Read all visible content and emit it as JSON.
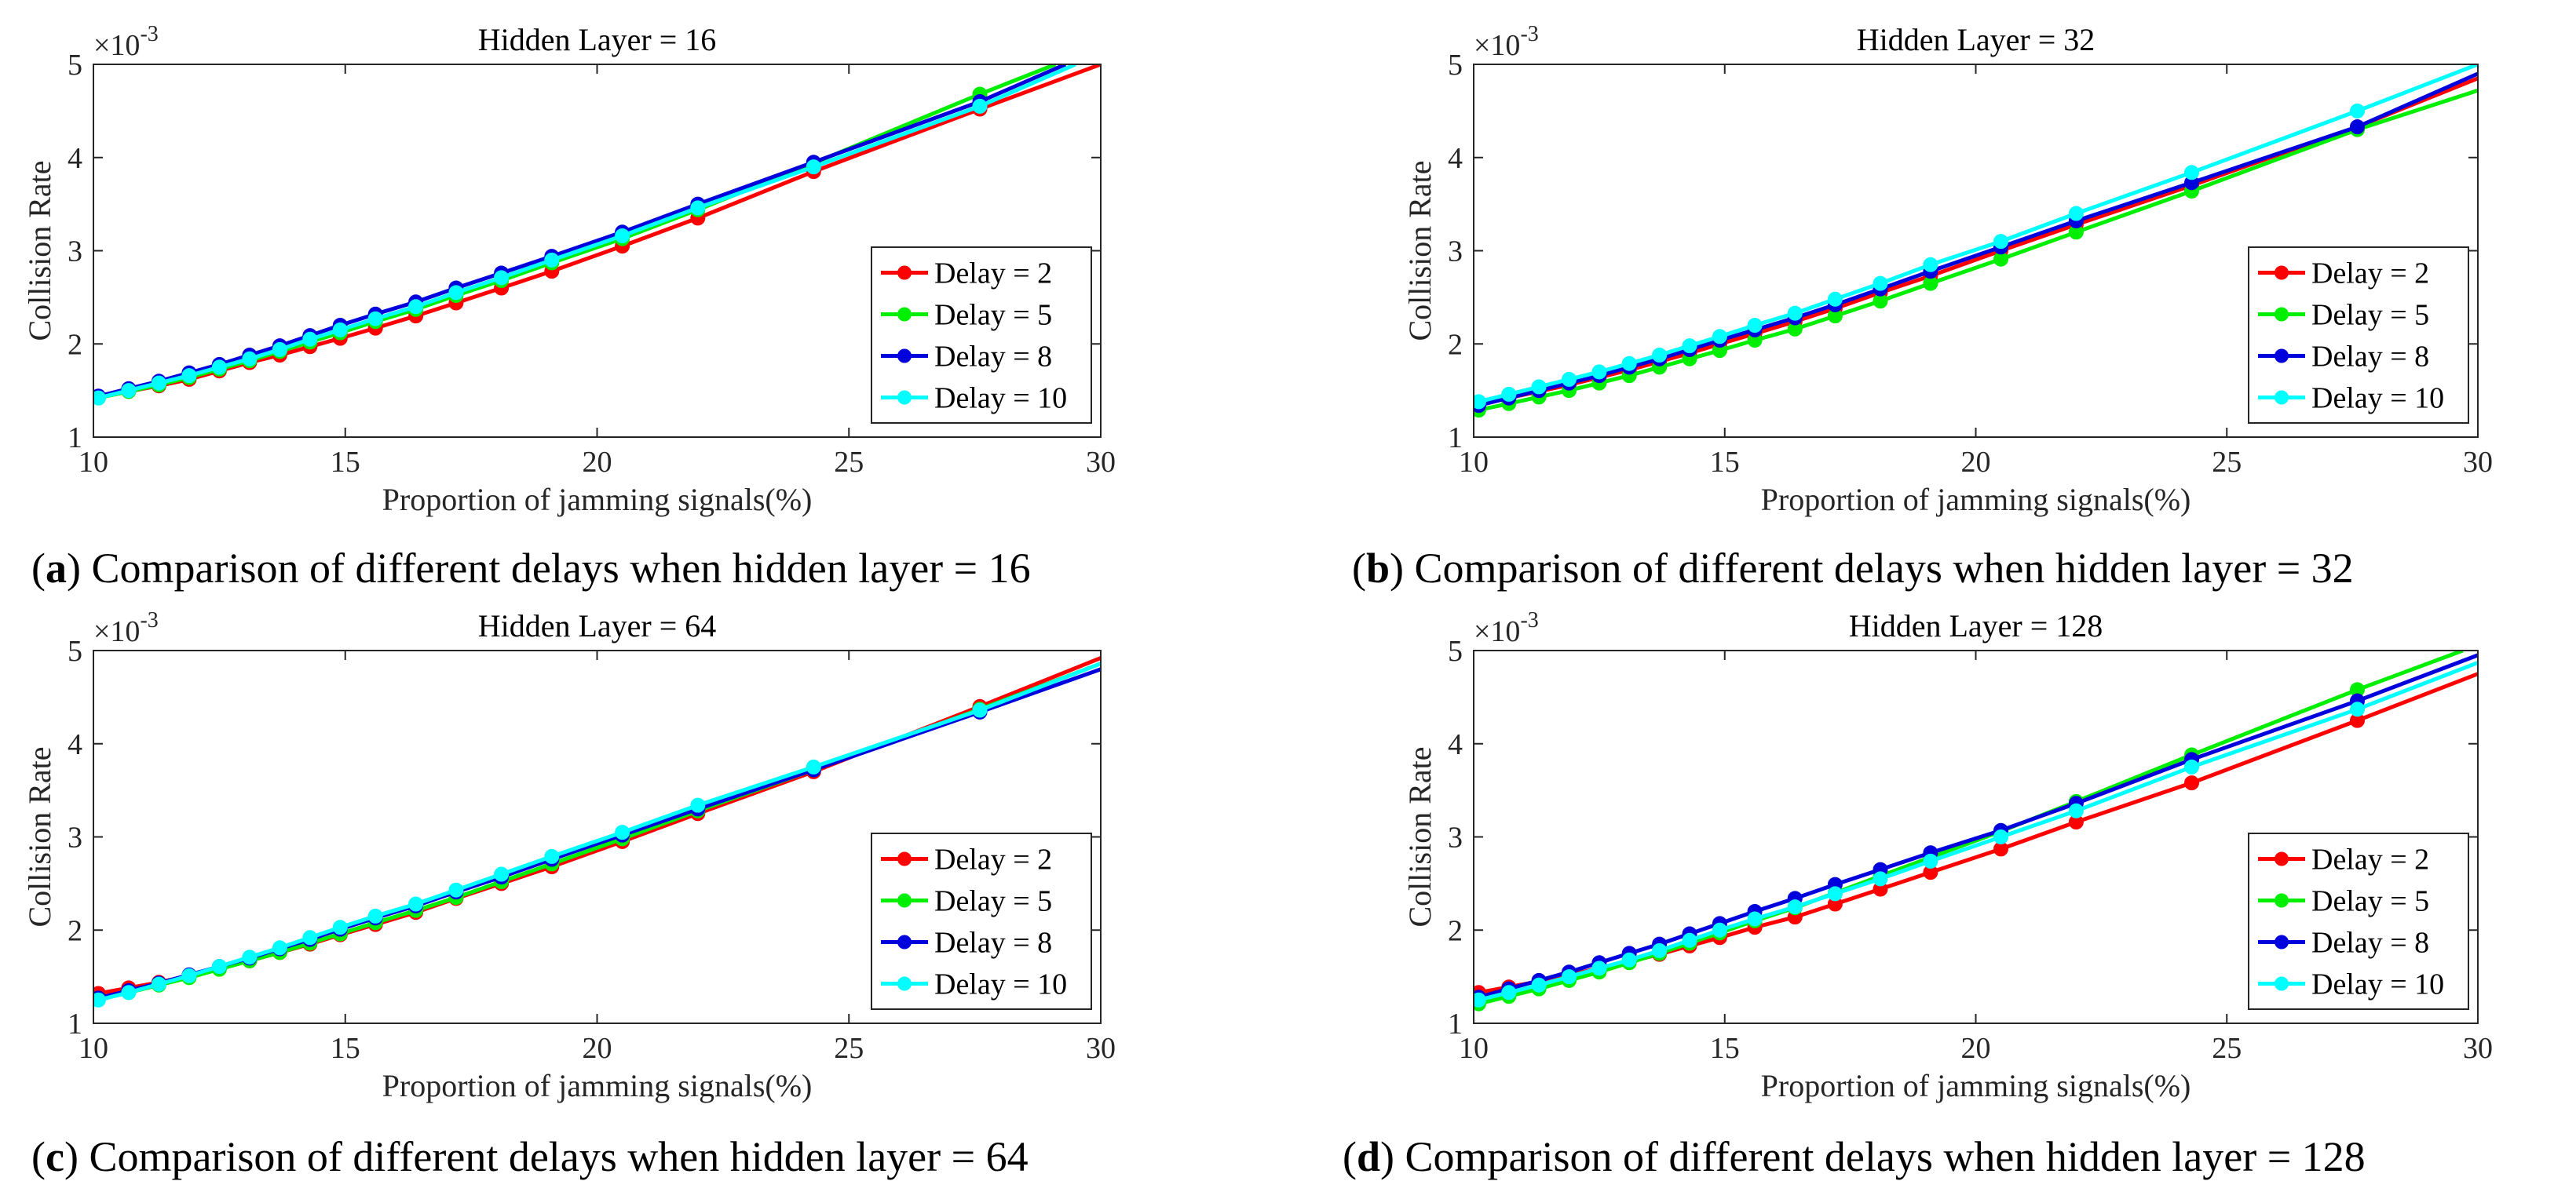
{
  "panels": [
    {
      "label": "a",
      "caption": "Comparison of different delays when hidden layer = 16",
      "chart_data": {
        "type": "line",
        "title": "Hidden Layer =  16",
        "xlabel": "Proportion of jamming signals(%)",
        "ylabel": "Collision Rate",
        "y_multiplier_text": "×10",
        "y_exponent_text": "-3",
        "xlim": [
          10,
          30
        ],
        "ylim": [
          1,
          5
        ],
        "xticks": [
          "10",
          "15",
          "20",
          "25",
          "30"
        ],
        "yticks": [
          "1",
          "2",
          "3",
          "4",
          "5"
        ],
        "legend_position": "lower-right",
        "series": [
          {
            "name": "Delay =  2",
            "color": "#ff0000",
            "x": [
              10.1,
              10.7,
              11.3,
              11.9,
              12.5,
              13.1,
              13.7,
              14.3,
              14.9,
              15.6,
              16.4,
              17.2,
              18.1,
              19.1,
              20.5,
              22.0,
              24.3,
              27.6,
              30.0
            ],
            "y": [
              1.43,
              1.49,
              1.55,
              1.62,
              1.71,
              1.8,
              1.88,
              1.97,
              2.06,
              2.17,
              2.3,
              2.44,
              2.6,
              2.78,
              3.05,
              3.35,
              3.85,
              4.52,
              5.0
            ]
          },
          {
            "name": "Delay =  5",
            "color": "#00ee00",
            "x": [
              10.1,
              10.7,
              11.3,
              11.9,
              12.5,
              13.1,
              13.7,
              14.3,
              14.9,
              15.6,
              16.4,
              17.2,
              18.1,
              19.1,
              20.5,
              22.0,
              24.3,
              27.6,
              29.1
            ],
            "y": [
              1.42,
              1.49,
              1.56,
              1.64,
              1.73,
              1.82,
              1.92,
              2.02,
              2.12,
              2.24,
              2.37,
              2.52,
              2.68,
              2.87,
              3.13,
              3.44,
              3.94,
              4.68,
              5.0
            ]
          },
          {
            "name": "Delay =  8",
            "color": "#0000dd",
            "x": [
              10.1,
              10.7,
              11.3,
              11.9,
              12.5,
              13.1,
              13.7,
              14.3,
              14.9,
              15.6,
              16.4,
              17.2,
              18.1,
              19.1,
              20.5,
              22.0,
              24.3,
              27.6,
              29.3
            ],
            "y": [
              1.44,
              1.52,
              1.6,
              1.69,
              1.78,
              1.88,
              1.98,
              2.09,
              2.2,
              2.32,
              2.45,
              2.6,
              2.76,
              2.94,
              3.2,
              3.5,
              3.95,
              4.6,
              5.0
            ]
          },
          {
            "name": "Delay = 10",
            "color": "#00ffff",
            "x": [
              10.1,
              10.7,
              11.3,
              11.9,
              12.5,
              13.1,
              13.7,
              14.3,
              14.9,
              15.6,
              16.4,
              17.2,
              18.1,
              19.1,
              20.5,
              22.0,
              24.3,
              27.6,
              29.5
            ],
            "y": [
              1.42,
              1.5,
              1.58,
              1.66,
              1.75,
              1.84,
              1.94,
              2.05,
              2.15,
              2.27,
              2.4,
              2.55,
              2.71,
              2.9,
              3.16,
              3.46,
              3.9,
              4.55,
              5.0
            ]
          }
        ]
      }
    },
    {
      "label": "b",
      "caption": "Comparison of different delays when hidden layer = 32",
      "chart_data": {
        "type": "line",
        "title": "Hidden Layer =  32",
        "xlabel": "Proportion of jamming signals(%)",
        "ylabel": "Collision Rate",
        "y_multiplier_text": "×10",
        "y_exponent_text": "-3",
        "xlim": [
          10,
          30
        ],
        "ylim": [
          1,
          5
        ],
        "xticks": [
          "10",
          "15",
          "20",
          "25",
          "30"
        ],
        "yticks": [
          "1",
          "2",
          "3",
          "4",
          "5"
        ],
        "legend_position": "lower-right",
        "series": [
          {
            "name": "Delay =  2",
            "color": "#ff0000",
            "x": [
              10.1,
              10.7,
              11.3,
              11.9,
              12.5,
              13.1,
              13.7,
              14.3,
              14.9,
              15.6,
              16.4,
              17.2,
              18.1,
              19.1,
              20.5,
              22.0,
              24.3,
              27.6,
              30.0
            ],
            "y": [
              1.35,
              1.42,
              1.49,
              1.56,
              1.64,
              1.72,
              1.81,
              1.9,
              2.0,
              2.11,
              2.24,
              2.38,
              2.55,
              2.73,
              3.0,
              3.28,
              3.7,
              4.33,
              4.85
            ]
          },
          {
            "name": "Delay =  5",
            "color": "#00ee00",
            "x": [
              10.1,
              10.7,
              11.3,
              11.9,
              12.5,
              13.1,
              13.7,
              14.3,
              14.9,
              15.6,
              16.4,
              17.2,
              18.1,
              19.1,
              20.5,
              22.0,
              24.3,
              27.6,
              30.0
            ],
            "y": [
              1.29,
              1.36,
              1.43,
              1.5,
              1.58,
              1.66,
              1.75,
              1.84,
              1.93,
              2.04,
              2.16,
              2.3,
              2.46,
              2.65,
              2.91,
              3.2,
              3.64,
              4.3,
              4.72
            ]
          },
          {
            "name": "Delay =  8",
            "color": "#0000dd",
            "x": [
              10.1,
              10.7,
              11.3,
              11.9,
              12.5,
              13.1,
              13.7,
              14.3,
              14.9,
              15.6,
              16.4,
              17.2,
              18.1,
              19.1,
              20.5,
              22.0,
              24.3,
              27.6,
              30.0
            ],
            "y": [
              1.34,
              1.42,
              1.5,
              1.58,
              1.66,
              1.75,
              1.84,
              1.94,
              2.04,
              2.15,
              2.28,
              2.42,
              2.59,
              2.78,
              3.04,
              3.32,
              3.73,
              4.33,
              4.9
            ]
          },
          {
            "name": "Delay = 10",
            "color": "#00ffff",
            "x": [
              10.1,
              10.7,
              11.3,
              11.9,
              12.5,
              13.1,
              13.7,
              14.3,
              14.9,
              15.6,
              16.4,
              17.2,
              18.1,
              19.1,
              20.5,
              22.0,
              24.3,
              27.6,
              30.0
            ],
            "y": [
              1.38,
              1.46,
              1.54,
              1.62,
              1.7,
              1.79,
              1.88,
              1.98,
              2.08,
              2.2,
              2.33,
              2.48,
              2.65,
              2.85,
              3.1,
              3.4,
              3.84,
              4.5,
              5.0
            ]
          }
        ]
      }
    },
    {
      "label": "c",
      "caption": "Comparison of different delays when hidden layer = 64",
      "chart_data": {
        "type": "line",
        "title": "Hidden Layer =  64",
        "xlabel": "Proportion of jamming signals(%)",
        "ylabel": "Collision Rate",
        "y_multiplier_text": "×10",
        "y_exponent_text": "-3",
        "xlim": [
          10,
          30
        ],
        "ylim": [
          1,
          5
        ],
        "xticks": [
          "10",
          "15",
          "20",
          "25",
          "30"
        ],
        "yticks": [
          "1",
          "2",
          "3",
          "4",
          "5"
        ],
        "legend_position": "lower-right",
        "series": [
          {
            "name": "Delay =  2",
            "color": "#ff0000",
            "x": [
              10.1,
              10.7,
              11.3,
              11.9,
              12.5,
              13.1,
              13.7,
              14.3,
              14.9,
              15.6,
              16.4,
              17.2,
              18.1,
              19.1,
              20.5,
              22.0,
              24.3,
              27.6,
              30.0
            ],
            "y": [
              1.32,
              1.38,
              1.44,
              1.51,
              1.59,
              1.67,
              1.76,
              1.85,
              1.95,
              2.06,
              2.19,
              2.34,
              2.5,
              2.68,
              2.95,
              3.25,
              3.7,
              4.4,
              4.92
            ]
          },
          {
            "name": "Delay =  5",
            "color": "#00ee00",
            "x": [
              10.1,
              10.7,
              11.3,
              11.9,
              12.5,
              13.1,
              13.7,
              14.3,
              14.9,
              15.6,
              16.4,
              17.2,
              18.1,
              19.1,
              20.5,
              22.0,
              24.3,
              27.6,
              30.0
            ],
            "y": [
              1.26,
              1.33,
              1.41,
              1.49,
              1.58,
              1.67,
              1.76,
              1.86,
              1.96,
              2.08,
              2.21,
              2.35,
              2.52,
              2.71,
              2.98,
              3.28,
              3.72,
              4.37,
              4.86
            ]
          },
          {
            "name": "Delay =  8",
            "color": "#0000dd",
            "x": [
              10.1,
              10.7,
              11.3,
              11.9,
              12.5,
              13.1,
              13.7,
              14.3,
              14.9,
              15.6,
              16.4,
              17.2,
              18.1,
              19.1,
              20.5,
              22.0,
              24.3,
              27.6,
              30.0
            ],
            "y": [
              1.27,
              1.35,
              1.43,
              1.52,
              1.61,
              1.7,
              1.8,
              1.9,
              2.01,
              2.13,
              2.26,
              2.41,
              2.57,
              2.76,
              3.02,
              3.3,
              3.72,
              4.34,
              4.8
            ]
          },
          {
            "name": "Delay = 10",
            "color": "#00ffff",
            "x": [
              10.1,
              10.7,
              11.3,
              11.9,
              12.5,
              13.1,
              13.7,
              14.3,
              14.9,
              15.6,
              16.4,
              17.2,
              18.1,
              19.1,
              20.5,
              22.0,
              24.3,
              27.6,
              30.0
            ],
            "y": [
              1.25,
              1.33,
              1.42,
              1.51,
              1.61,
              1.71,
              1.81,
              1.92,
              2.03,
              2.15,
              2.28,
              2.43,
              2.6,
              2.79,
              3.05,
              3.34,
              3.75,
              4.36,
              4.86
            ]
          }
        ]
      }
    },
    {
      "label": "d",
      "caption": "Comparison of different delays when hidden layer = 128",
      "chart_data": {
        "type": "line",
        "title": "Hidden Layer = 128",
        "xlabel": "Proportion of jamming signals(%)",
        "ylabel": "Collision Rate",
        "y_multiplier_text": "×10",
        "y_exponent_text": "-3",
        "xlim": [
          10,
          30
        ],
        "ylim": [
          1,
          5
        ],
        "xticks": [
          "10",
          "15",
          "20",
          "25",
          "30"
        ],
        "yticks": [
          "1",
          "2",
          "3",
          "4",
          "5"
        ],
        "legend_position": "lower-right",
        "series": [
          {
            "name": "Delay =  2",
            "color": "#ff0000",
            "x": [
              10.1,
              10.7,
              11.3,
              11.9,
              12.5,
              13.1,
              13.7,
              14.3,
              14.9,
              15.6,
              16.4,
              17.2,
              18.1,
              19.1,
              20.5,
              22.0,
              24.3,
              27.6,
              30.0
            ],
            "y": [
              1.33,
              1.39,
              1.45,
              1.52,
              1.59,
              1.66,
              1.74,
              1.83,
              1.92,
              2.03,
              2.14,
              2.28,
              2.44,
              2.62,
              2.87,
              3.16,
              3.58,
              4.25,
              4.75
            ]
          },
          {
            "name": "Delay =  5",
            "color": "#00ee00",
            "x": [
              10.1,
              10.7,
              11.3,
              11.9,
              12.5,
              13.1,
              13.7,
              14.3,
              14.9,
              15.6,
              16.4,
              17.2,
              18.1,
              19.1,
              20.5,
              22.0,
              24.3,
              27.6,
              29.7
            ],
            "y": [
              1.21,
              1.29,
              1.37,
              1.46,
              1.55,
              1.65,
              1.75,
              1.86,
              1.97,
              2.1,
              2.24,
              2.4,
              2.58,
              2.78,
              3.06,
              3.38,
              3.88,
              4.58,
              5.0
            ]
          },
          {
            "name": "Delay =  8",
            "color": "#0000dd",
            "x": [
              10.1,
              10.7,
              11.3,
              11.9,
              12.5,
              13.1,
              13.7,
              14.3,
              14.9,
              15.6,
              16.4,
              17.2,
              18.1,
              19.1,
              20.5,
              22.0,
              24.3,
              27.6,
              30.0
            ],
            "y": [
              1.28,
              1.37,
              1.46,
              1.55,
              1.65,
              1.75,
              1.85,
              1.96,
              2.07,
              2.2,
              2.34,
              2.49,
              2.65,
              2.83,
              3.07,
              3.36,
              3.83,
              4.46,
              4.95
            ]
          },
          {
            "name": "Delay = 10",
            "color": "#00ffff",
            "x": [
              10.1,
              10.7,
              11.3,
              11.9,
              12.5,
              13.1,
              13.7,
              14.3,
              14.9,
              15.6,
              16.4,
              17.2,
              18.1,
              19.1,
              20.5,
              22.0,
              24.3,
              27.6,
              30.0
            ],
            "y": [
              1.25,
              1.33,
              1.41,
              1.5,
              1.59,
              1.68,
              1.78,
              1.89,
              2.0,
              2.12,
              2.25,
              2.39,
              2.55,
              2.74,
              3.0,
              3.28,
              3.75,
              4.37,
              4.87
            ]
          }
        ]
      }
    }
  ]
}
